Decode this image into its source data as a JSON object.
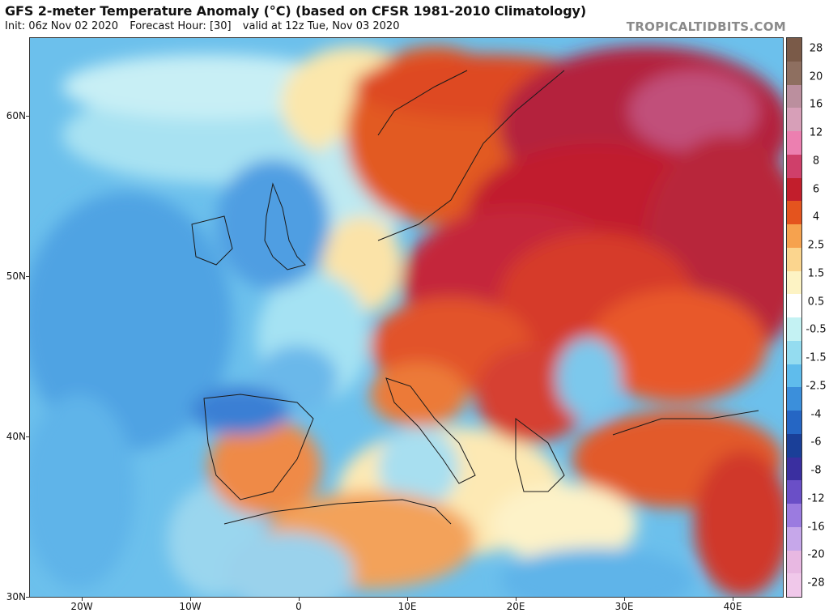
{
  "header": {
    "title": "GFS 2-meter Temperature Anomaly (°C) (based on CFSR 1981-2010 Climatology)",
    "init": "Init: 06z Nov 02 2020",
    "forecast_hour": "Forecast Hour: [30]",
    "valid": "valid at 12z Tue, Nov 03 2020",
    "brand": "TROPICALTIDBITS.COM"
  },
  "map": {
    "lat_labels": [
      "60N",
      "50N",
      "40N",
      "30N"
    ],
    "lon_labels": [
      "20W",
      "10W",
      "0",
      "10E",
      "20E",
      "30E",
      "40E"
    ]
  },
  "colorbar": {
    "labels": [
      "28",
      "20",
      "16",
      "12",
      "8",
      "6",
      "4",
      "2.5",
      "1.5",
      "0.5",
      "-0.5",
      "-1.5",
      "-2.5",
      "-4",
      "-6",
      "-8",
      "-12",
      "-16",
      "-20",
      "-28"
    ],
    "colors": [
      "#7a5a48",
      "#8e6f60",
      "#bb8f9e",
      "#d79fb8",
      "#ec7fb0",
      "#cf3f6a",
      "#c21e2c",
      "#e4541e",
      "#f6a24e",
      "#fbd58e",
      "#fdf3c4",
      "#ffffff",
      "#c4f2f3",
      "#94dcf0",
      "#5fbcec",
      "#3b8fdb",
      "#2566c4",
      "#1a3f98",
      "#3a2fa0",
      "#6a4fc7",
      "#9b7be0",
      "#c6a7ea",
      "#e8b8e2",
      "#f0c8ea"
    ]
  }
}
